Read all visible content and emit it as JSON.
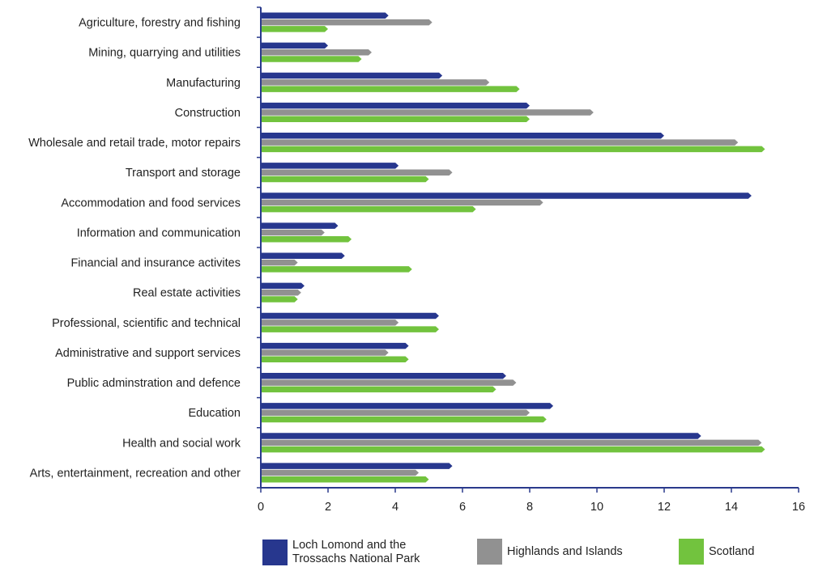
{
  "chart_data": {
    "type": "bar",
    "orientation": "horizontal",
    "categories": [
      "Agriculture, forestry and fishing",
      "Mining, quarrying and utilities",
      "Manufacturing",
      "Construction",
      "Wholesale and retail trade, motor repairs",
      "Transport and storage",
      "Accommodation and food services",
      "Information and communication",
      "Financial and insurance activites",
      "Real estate activities",
      "Professional, scientific and technical",
      "Administrative and support services",
      "Public adminstration and defence",
      "Education",
      "Health and social work",
      "Arts, entertainment, recreation and other"
    ],
    "series": [
      {
        "name": "Loch Lomond and the Trossachs National Park",
        "color": "#27378e",
        "values": [
          3.8,
          2.0,
          5.4,
          8.0,
          12.0,
          4.1,
          14.6,
          2.3,
          2.5,
          1.3,
          5.3,
          4.4,
          7.3,
          8.7,
          13.1,
          5.7
        ]
      },
      {
        "name": "Highlands and Islands",
        "color": "#919191",
        "values": [
          5.1,
          3.3,
          6.8,
          9.9,
          14.2,
          5.7,
          8.4,
          1.9,
          1.1,
          1.2,
          4.1,
          3.8,
          7.6,
          8.0,
          14.9,
          4.7
        ]
      },
      {
        "name": "Scotland",
        "color": "#72c33e",
        "values": [
          2.0,
          3.0,
          7.7,
          8.0,
          15.0,
          5.0,
          6.4,
          2.7,
          4.5,
          1.1,
          5.3,
          4.4,
          7.0,
          8.5,
          15.0,
          5.0
        ]
      }
    ],
    "xlim": [
      0,
      16
    ],
    "xticks": [
      "0",
      "2",
      "4",
      "6",
      "8",
      "10",
      "12",
      "14",
      "16"
    ],
    "legend_position": "bottom",
    "grid": false
  }
}
